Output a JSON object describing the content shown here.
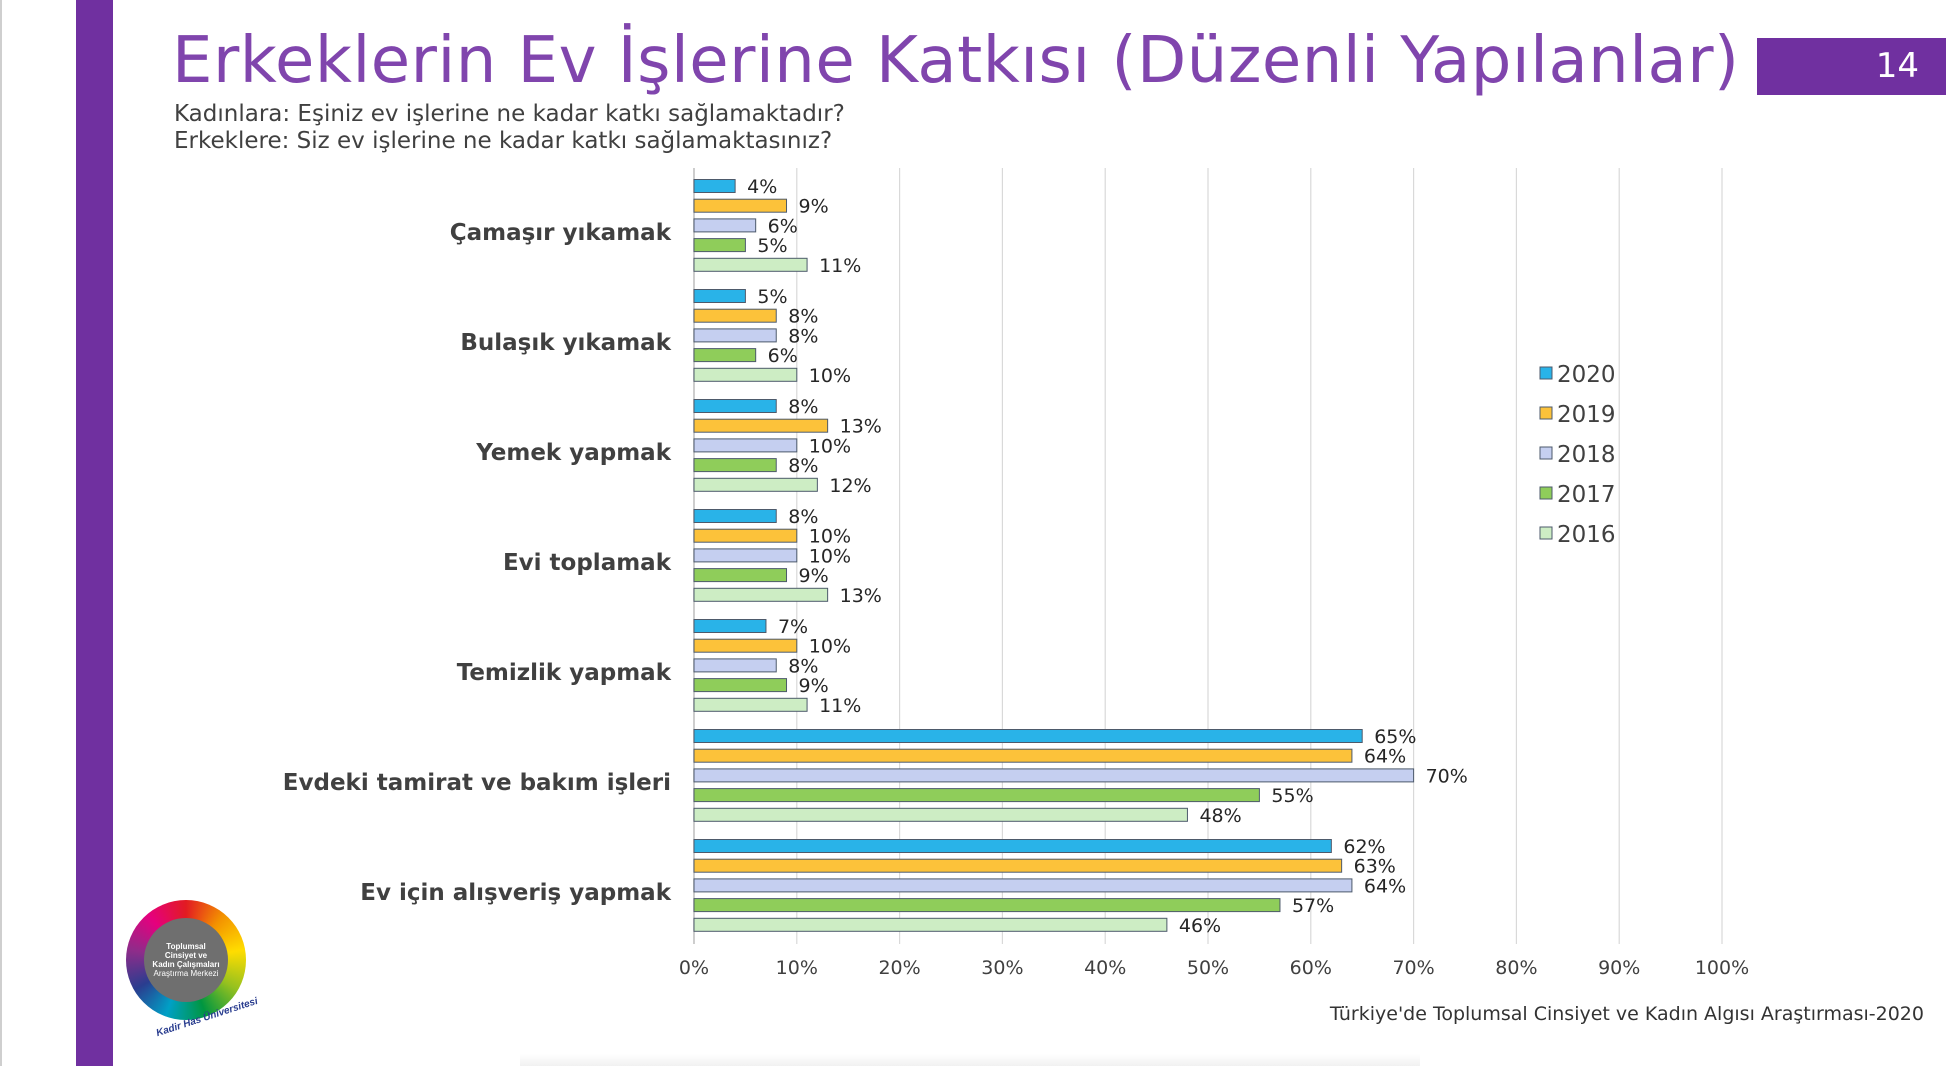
{
  "title": "Erkeklerin Ev İşlerine Katkısı (Düzenli Yapılanlar)",
  "page_number": "14",
  "subtitle_women": "Kadınlara: Eşiniz ev işlerine ne kadar katkı sağlamaktadır?",
  "subtitle_men": "Erkeklere: Siz ev işlerine ne kadar katkı sağlamaktasınız?",
  "footer_source": "Türkiye'de Toplumsal Cinsiyet ve Kadın Algısı Araştırması-2020",
  "logo": {
    "line1": "Toplumsal",
    "line2": "Cinsiyet ve",
    "line3": "Kadın Çalışmaları",
    "line4": "Araştırma Merkezi",
    "university": "Kadir Has Üniversitesi"
  },
  "colors": {
    "2020": "#29b3e8",
    "2019": "#fcc23a",
    "2018": "#c5cff0",
    "2017": "#8fcd5a",
    "2016": "#cdedc4",
    "bar_border": "#4d5a6b",
    "grid": "#d9d9d9",
    "accent": "#7030a0",
    "title": "#8045ad"
  },
  "chart_data": {
    "type": "bar",
    "orientation": "horizontal",
    "categories": [
      "Çamaşır yıkamak",
      "Bulaşık yıkamak",
      "Yemek yapmak",
      "Evi toplamak",
      "Temizlik yapmak",
      "Evdeki tamirat ve bakım işleri",
      "Ev için alışveriş yapmak"
    ],
    "series": [
      {
        "name": "2020",
        "values": [
          4,
          5,
          8,
          8,
          7,
          65,
          62
        ]
      },
      {
        "name": "2019",
        "values": [
          9,
          8,
          13,
          10,
          10,
          64,
          63
        ]
      },
      {
        "name": "2018",
        "values": [
          6,
          8,
          10,
          10,
          8,
          70,
          64
        ]
      },
      {
        "name": "2017",
        "values": [
          5,
          6,
          8,
          9,
          9,
          55,
          57
        ]
      },
      {
        "name": "2016",
        "values": [
          11,
          10,
          12,
          13,
          11,
          48,
          46
        ]
      }
    ],
    "value_suffix": "%",
    "xlim": [
      0,
      100
    ],
    "xticks": [
      "0%",
      "10%",
      "20%",
      "30%",
      "40%",
      "50%",
      "60%",
      "70%",
      "80%",
      "90%",
      "100%"
    ],
    "grid": true,
    "legend_position": "right"
  }
}
